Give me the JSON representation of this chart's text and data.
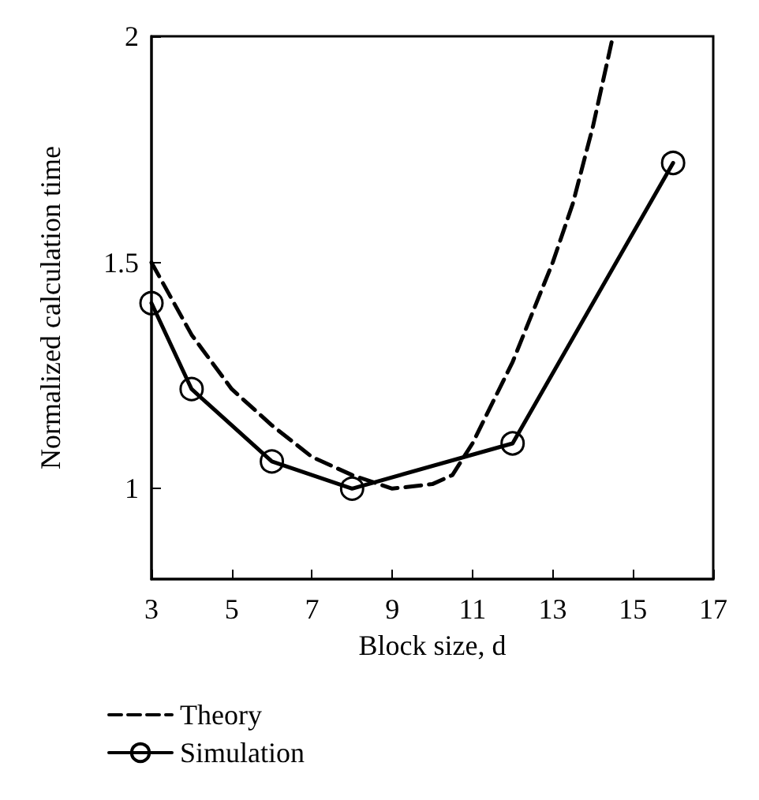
{
  "chart_data": {
    "type": "line",
    "xlabel": "Block size, d",
    "ylabel": "Normalized calculation time",
    "xlim": [
      3,
      17
    ],
    "xticks": [
      3,
      5,
      7,
      9,
      11,
      13,
      15,
      17
    ],
    "ylim": [
      0.8,
      2
    ],
    "yticks": [
      1,
      1.5,
      2
    ],
    "grid": false,
    "legend": "bottom",
    "series": [
      {
        "name": "Theory",
        "color": "#000000",
        "line_style": "dashed",
        "marker": "none",
        "x": [
          3,
          4,
          5,
          6,
          7,
          8,
          9,
          10,
          10.5,
          11,
          12,
          13,
          13.5,
          14,
          14.5
        ],
        "values": [
          1.5,
          1.34,
          1.22,
          1.14,
          1.07,
          1.03,
          1.0,
          1.01,
          1.03,
          1.1,
          1.28,
          1.5,
          1.63,
          1.8,
          2.0
        ]
      },
      {
        "name": "Simulation",
        "color": "#000000",
        "line_style": "solid",
        "marker": "circle",
        "x": [
          3,
          4,
          6,
          8,
          12,
          16
        ],
        "values": [
          1.41,
          1.22,
          1.06,
          1.0,
          1.1,
          1.72
        ]
      }
    ]
  }
}
